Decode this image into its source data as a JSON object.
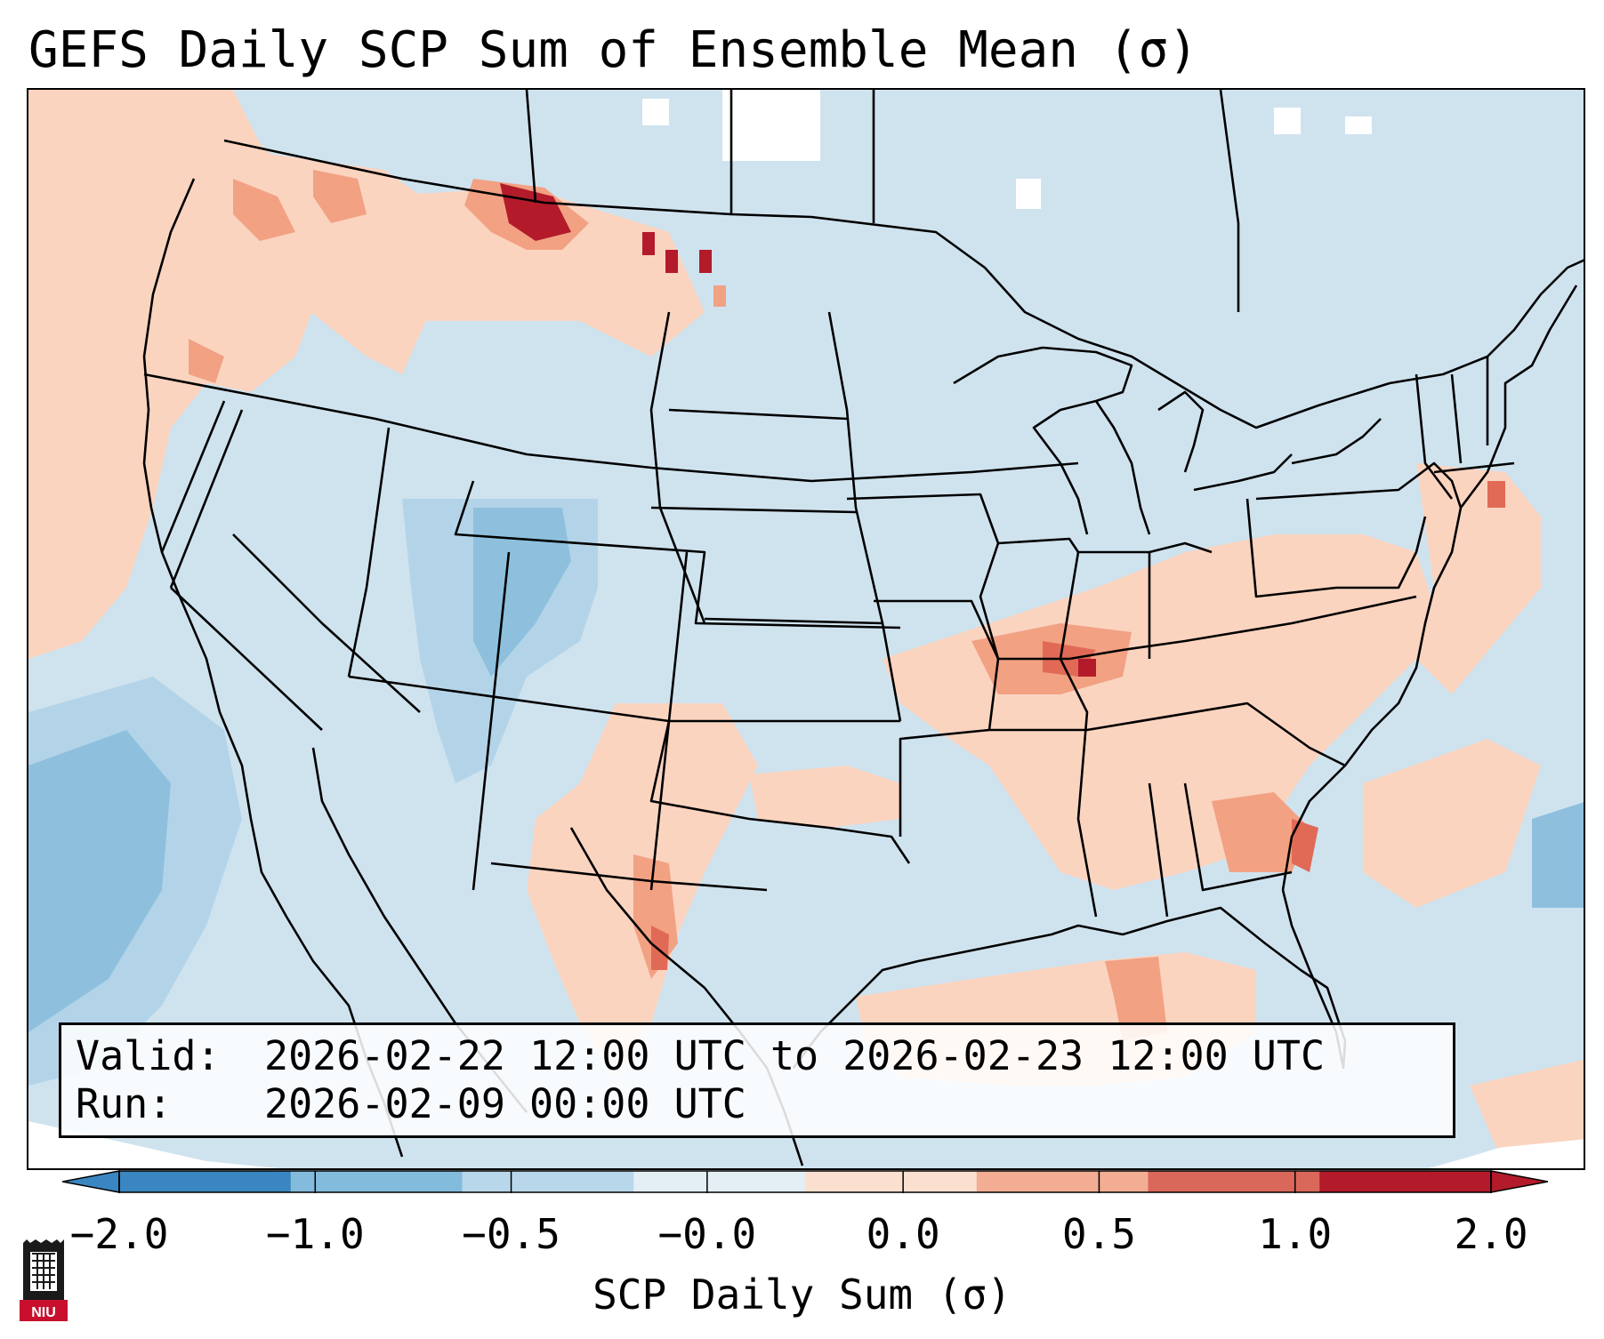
{
  "title": "GEFS Daily SCP Sum of Ensemble Mean (σ)",
  "info": {
    "valid_label": "Valid:",
    "valid_value": "2026-02-22 12:00 UTC to 2026-02-23 12:00 UTC",
    "run_label": "Run:",
    "run_value": "2026-02-09 00:00 UTC"
  },
  "colorbar": {
    "label": "SCP Daily Sum (σ)",
    "ticks": [
      "−2.0",
      "−1.0",
      "−0.5",
      "−0.0",
      "0.0",
      "0.5",
      "1.0",
      "2.0"
    ],
    "bin_colors": [
      "#3a86c0",
      "#83bbdc",
      "#b9d7ea",
      "#e4eef5",
      "#fbe0d0",
      "#f2ad92",
      "#d9675a",
      "#b31b2b"
    ],
    "under_color": "#3a86c0",
    "over_color": "#b31b2b",
    "extend": "both"
  },
  "colors": {
    "ocean_background": "#cfe3ef",
    "light_pos": "#fbd4c0",
    "mod_pos": "#f2a183",
    "strong_pos": "#e06a56",
    "max_pos": "#b31b2b",
    "light_neg": "#b3d4e8",
    "mod_neg": "#8ec0de",
    "no_data": "#ffffff"
  },
  "logo": {
    "icon": "niu-castle-icon",
    "text": "NIU"
  }
}
